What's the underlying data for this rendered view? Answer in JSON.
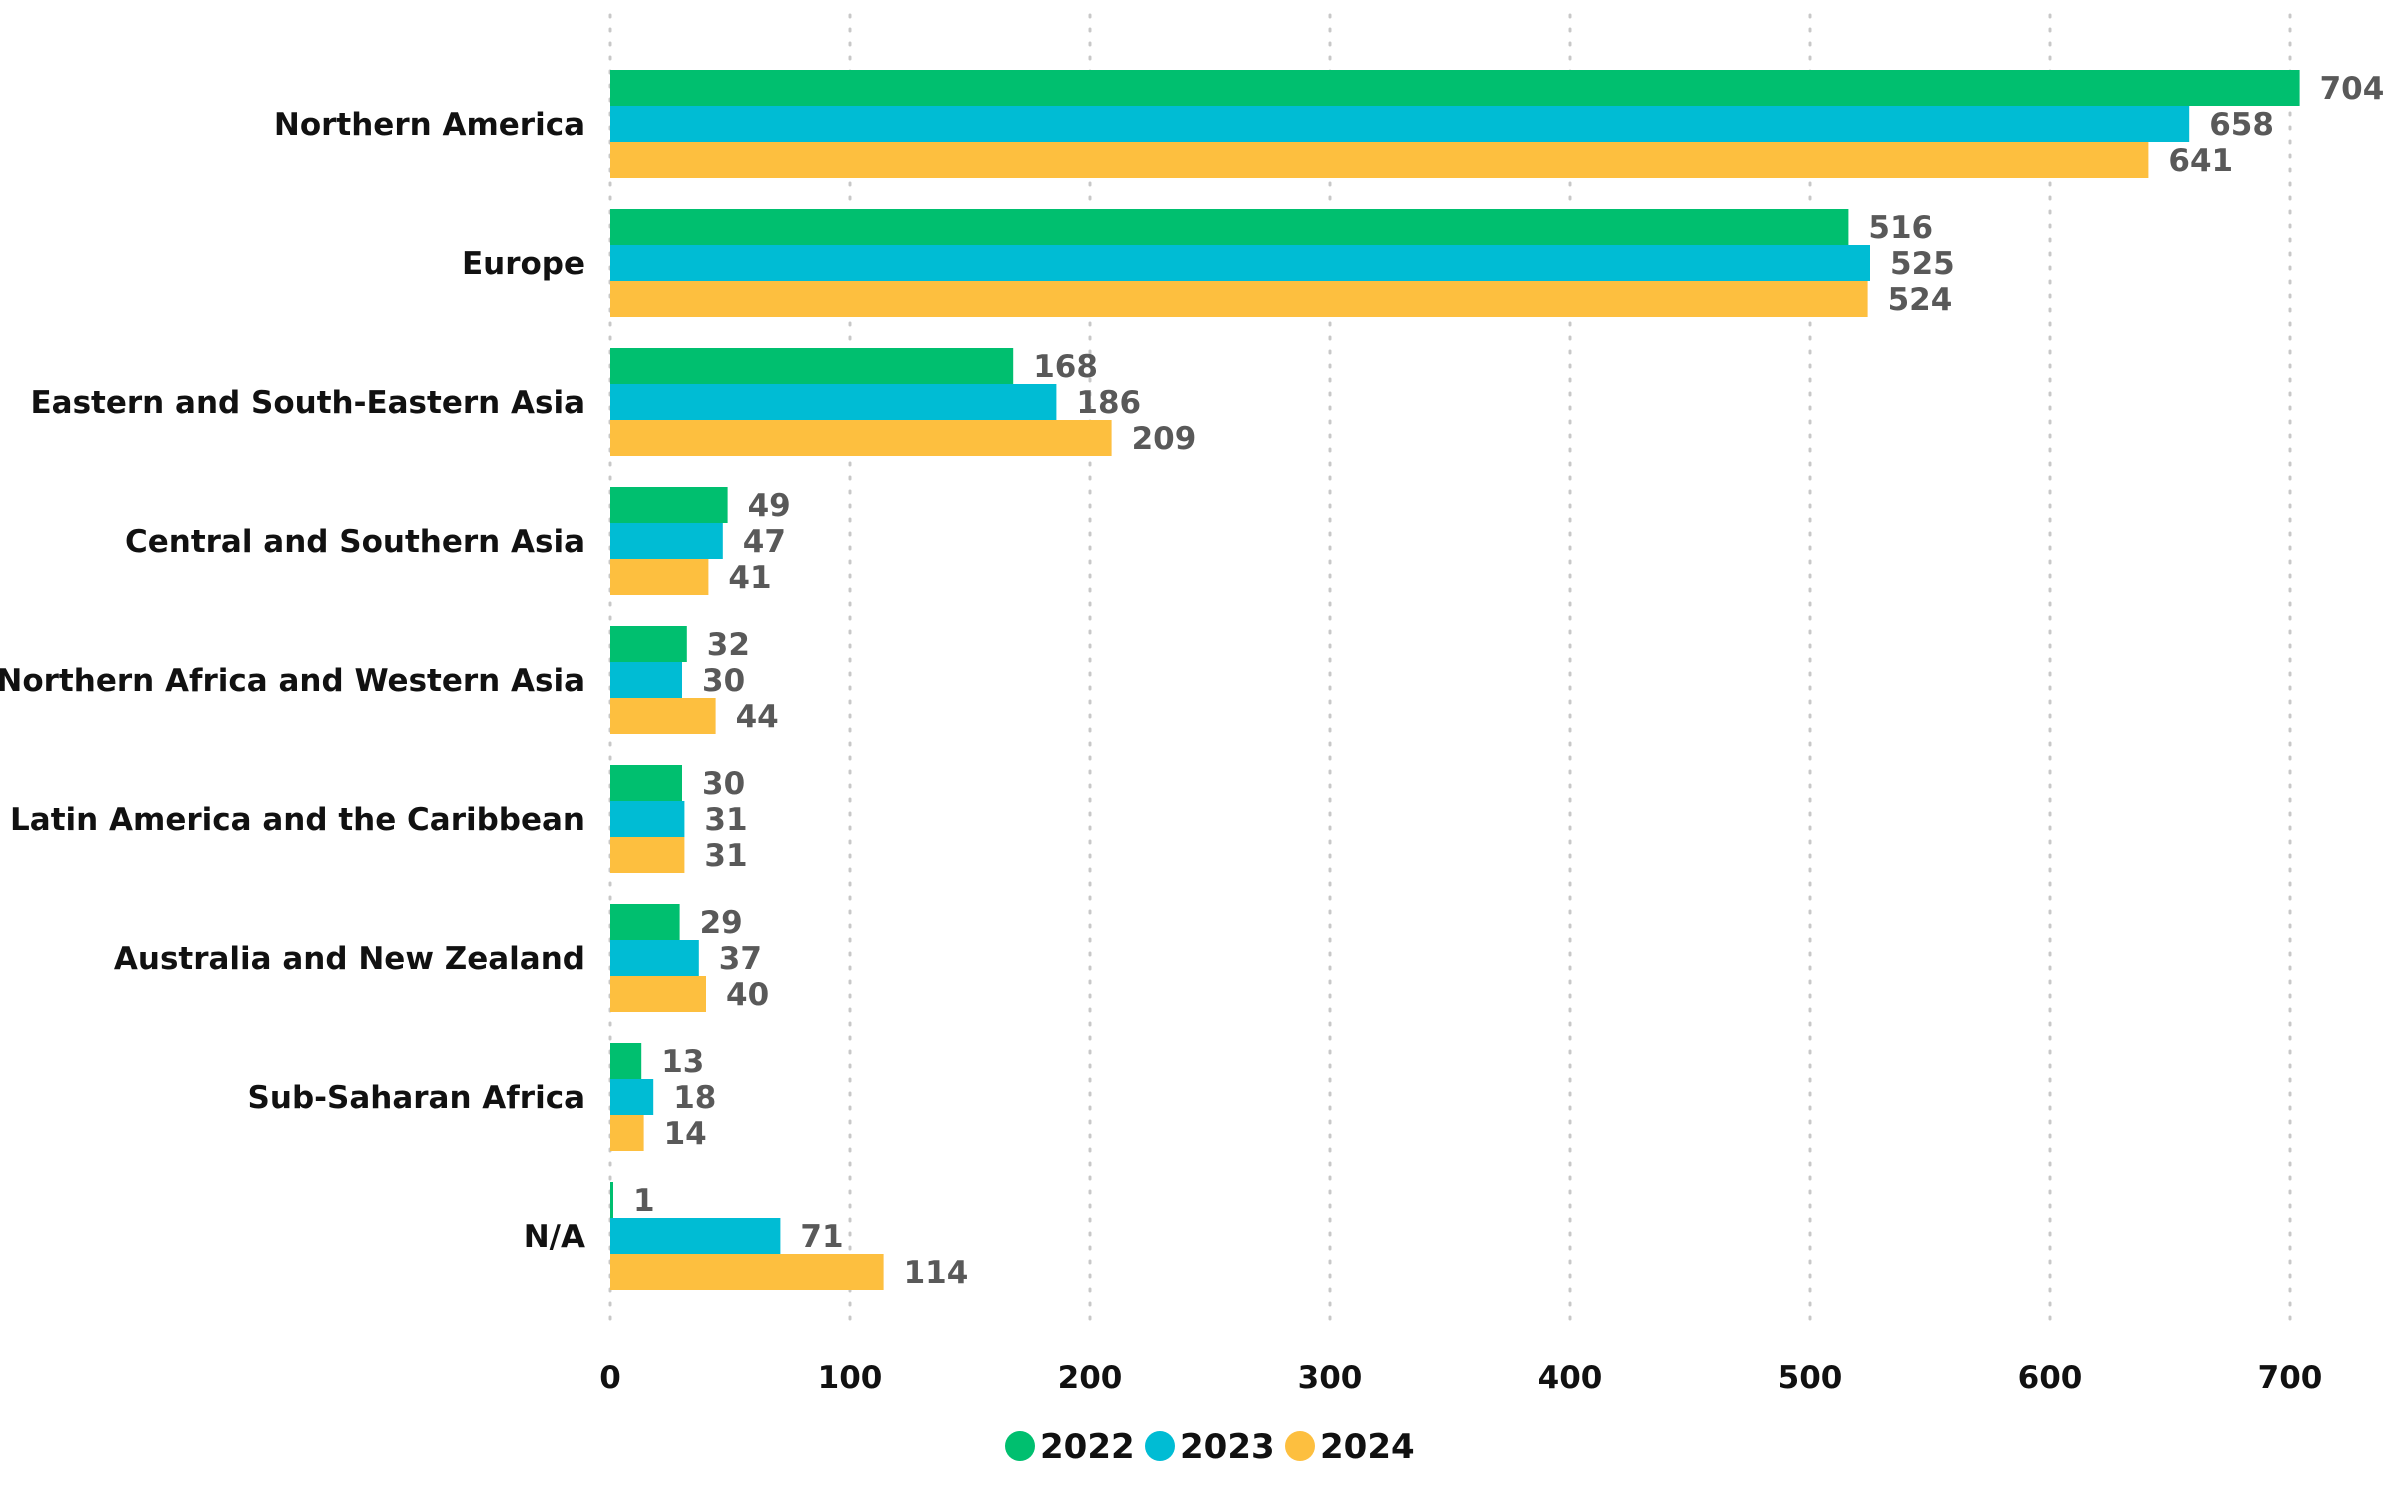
{
  "chart_data": {
    "type": "bar",
    "orientation": "horizontal",
    "title": "",
    "xlabel": "",
    "ylabel": "",
    "xlim": [
      0,
      700
    ],
    "xticks": [
      0,
      100,
      200,
      300,
      400,
      500,
      600,
      700
    ],
    "grid": "vertical dotted",
    "legend_position": "bottom-center",
    "categories": [
      "Northern America",
      "Europe",
      "Eastern and South-Eastern Asia",
      "Central and Southern Asia",
      "Northern Africa and Western Asia",
      "Latin America and the Caribbean",
      "Australia and New Zealand",
      "Sub-Saharan Africa",
      "N/A"
    ],
    "series": [
      {
        "name": "2022",
        "color": "#00BF6F",
        "values": [
          704,
          516,
          168,
          49,
          32,
          30,
          29,
          13,
          1
        ]
      },
      {
        "name": "2023",
        "color": "#00BCD4",
        "values": [
          658,
          525,
          186,
          47,
          30,
          31,
          37,
          18,
          71
        ]
      },
      {
        "name": "2024",
        "color": "#FDBF3F",
        "values": [
          641,
          524,
          209,
          41,
          44,
          31,
          40,
          14,
          114
        ]
      }
    ]
  }
}
